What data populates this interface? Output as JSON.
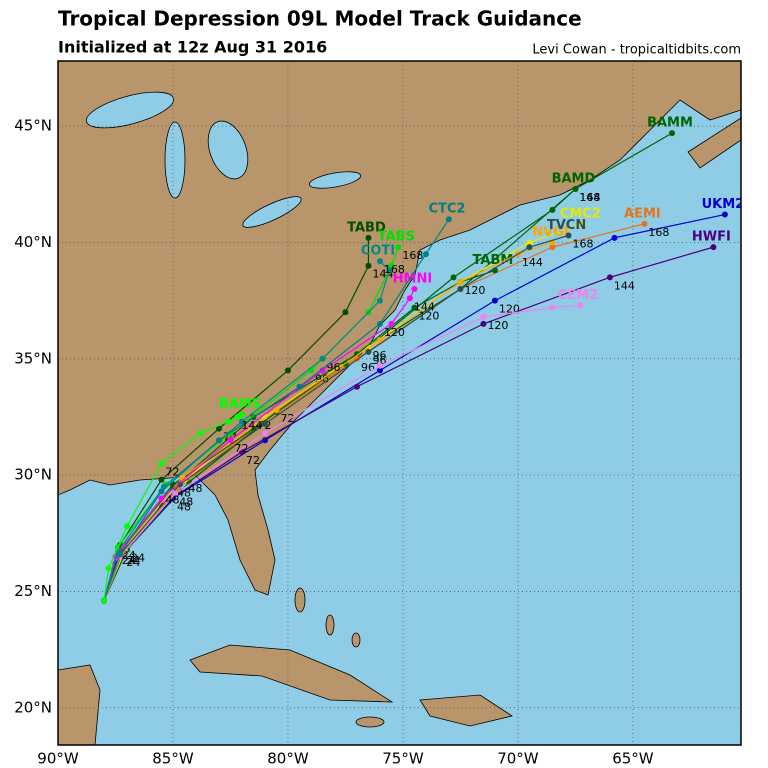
{
  "title": "Tropical Depression 09L Model Track Guidance",
  "subtitle": "Initialized at 12z Aug 31 2016",
  "credit": "Levi Cowan - tropicaltidbits.com",
  "map": {
    "xlim": [
      -90,
      -60.3
    ],
    "ylim": [
      18.4,
      47.8
    ],
    "xticks": [
      {
        "value": -90,
        "label": "90°W"
      },
      {
        "value": -85,
        "label": "85°W"
      },
      {
        "value": -80,
        "label": "80°W"
      },
      {
        "value": -75,
        "label": "75°W"
      },
      {
        "value": -70,
        "label": "70°W"
      },
      {
        "value": -65,
        "label": "65°W"
      }
    ],
    "yticks": [
      {
        "value": 20,
        "label": "20°N"
      },
      {
        "value": 25,
        "label": "25°N"
      },
      {
        "value": 30,
        "label": "30°N"
      },
      {
        "value": 35,
        "label": "35°N"
      },
      {
        "value": 40,
        "label": "40°N"
      },
      {
        "value": 45,
        "label": "45°N"
      }
    ],
    "grid": true,
    "hour_labels": [
      "24",
      "48",
      "72",
      "96",
      "120",
      "144",
      "168"
    ],
    "tracks": [
      {
        "name": "BAMM",
        "color": "#006400",
        "lon": [
          -88,
          -87.2,
          -85,
          -81.5,
          -77,
          -72.5,
          -67.5,
          -63.3
        ],
        "lat": [
          24.6,
          26.8,
          29.5,
          32.5,
          35.2,
          38,
          42.3,
          44.7
        ]
      },
      {
        "name": "BAMD",
        "color": "#006400",
        "lon": [
          -88,
          -87,
          -84.3,
          -80.5,
          -76.5,
          -72.8,
          -68.5,
          -67.5
        ],
        "lat": [
          24.6,
          26.8,
          29.7,
          32.7,
          35.5,
          38.5,
          41.4,
          42.3
        ]
      },
      {
        "name": "UKM2",
        "color": "#0000cd",
        "lon": [
          -88,
          -87.3,
          -85,
          -81,
          -76,
          -71,
          -65.8,
          -61
        ],
        "lat": [
          24.6,
          26.5,
          29,
          31.5,
          34.5,
          37.5,
          40.2,
          41.2
        ]
      },
      {
        "name": "HWFI",
        "color": "#4b0082",
        "lon": [
          -88,
          -87.5,
          -85.5,
          -82,
          -77,
          -71.5,
          -66,
          -61.5
        ],
        "lat": [
          24.6,
          26.2,
          28.7,
          31,
          33.8,
          36.5,
          38.5,
          39.8
        ]
      },
      {
        "name": "AEMI",
        "color": "#e8731a",
        "lon": [
          -88,
          -87.2,
          -84.8,
          -81.5,
          -77,
          -72.5,
          -68.5,
          -64.5
        ],
        "lat": [
          24.6,
          26.6,
          29.4,
          32,
          35,
          38,
          39.8,
          40.8
        ]
      },
      {
        "name": "CMC2",
        "color": "#e8e800",
        "lon": [
          -88,
          -87.1,
          -84.5,
          -81,
          -76.5,
          -72.5,
          -69.5,
          -67.2
        ],
        "lat": [
          24.6,
          26.8,
          29.8,
          32.5,
          35.5,
          38.3,
          40,
          40.8
        ]
      },
      {
        "name": "TABD",
        "color": "#004d00",
        "lon": [
          -88,
          -87.3,
          -85.5,
          -83,
          -80,
          -77.5,
          -76.5,
          -76.5
        ],
        "lat": [
          24.6,
          27,
          29.8,
          32,
          34.5,
          37,
          39,
          40.2
        ]
      },
      {
        "name": "TABS",
        "color": "#00e000",
        "lon": [
          -88,
          -87.4,
          -85.3,
          -82.5,
          -79,
          -76.5,
          -75.5,
          -75.2
        ],
        "lat": [
          24.6,
          26.9,
          29.6,
          31.8,
          34.5,
          37,
          39,
          39.8
        ]
      },
      {
        "name": "TABM",
        "color": "#006400",
        "lon": [
          -88,
          -87.2,
          -85,
          -81.5,
          -77.5,
          -74.5,
          -72.5,
          -71
        ],
        "lat": [
          24.6,
          26.9,
          29.6,
          32,
          34.8,
          37.2,
          38.3,
          38.8
        ]
      },
      {
        "name": "NVGI",
        "color": "#ffa500",
        "lon": [
          -88,
          -87.1,
          -84.6,
          -80.5,
          -76,
          -72.5,
          -70,
          -68.5
        ],
        "lat": [
          24.6,
          26.9,
          29.9,
          32.8,
          35.8,
          38.3,
          39.5,
          40
        ]
      },
      {
        "name": "TVCN",
        "color": "#2f4f4f",
        "lon": [
          -88,
          -87.2,
          -84.7,
          -81,
          -76.5,
          -72.5,
          -69.5,
          -67.8
        ],
        "lat": [
          24.6,
          26.7,
          29.6,
          32.2,
          35.3,
          38,
          39.8,
          40.3
        ]
      },
      {
        "name": "CEM2",
        "color": "#ee82ee",
        "lon": [
          -88,
          -87.3,
          -84.9,
          -81,
          -76,
          -71.5,
          -68.5,
          -67.3
        ],
        "lat": [
          24.6,
          26.5,
          29.2,
          31.8,
          34.7,
          36.8,
          37.2,
          37.3
        ]
      },
      {
        "name": "HMNI",
        "color": "#ff00ff",
        "lon": [
          -88,
          -87.5,
          -85.5,
          -82.5,
          -78.5,
          -75.5,
          -74.7,
          -74.5
        ],
        "lat": [
          24.6,
          26.5,
          29,
          31.5,
          34.5,
          36.5,
          37.6,
          38
        ]
      },
      {
        "name": "COTI",
        "color": "#008b8b",
        "lon": [
          -88,
          -87.4,
          -85.4,
          -82,
          -78.5,
          -76,
          -75.6,
          -76
        ],
        "lat": [
          24.6,
          26.7,
          29.5,
          32.3,
          35,
          37.5,
          38.8,
          39.2
        ]
      },
      {
        "name": "CTC2",
        "color": "#008080",
        "lon": [
          -88,
          -87.3,
          -85.5,
          -83,
          -79.5,
          -76,
          -74,
          -73
        ],
        "lat": [
          24.6,
          26.6,
          29.3,
          31.5,
          33.8,
          36.5,
          39.5,
          41
        ]
      },
      {
        "name": "BAMS",
        "color": "#00ff00",
        "lon": [
          -88,
          -87.8,
          -87,
          -85.5,
          -83.8,
          -82.6,
          -82.2,
          -82
        ],
        "lat": [
          24.6,
          26,
          27.8,
          30.5,
          31.8,
          32.3,
          32.5,
          32.6
        ]
      }
    ]
  }
}
